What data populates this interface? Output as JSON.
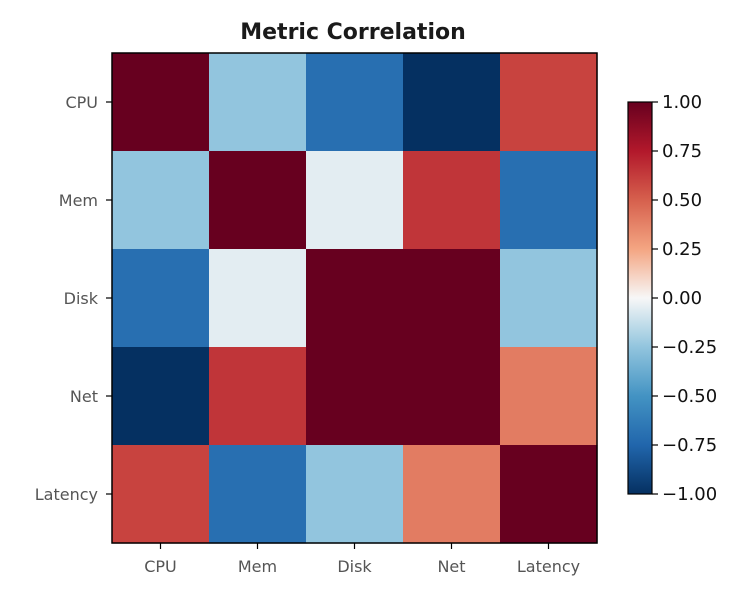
{
  "chart_data": {
    "type": "heatmap",
    "title": "Metric Correlation",
    "xlabel": "",
    "ylabel": "",
    "x_categories": [
      "CPU",
      "Mem",
      "Disk",
      "Net",
      "Latency"
    ],
    "y_categories": [
      "CPU",
      "Mem",
      "Disk",
      "Net",
      "Latency"
    ],
    "values": [
      [
        1.0,
        -0.25,
        -0.7,
        -1.0,
        0.6
      ],
      [
        -0.25,
        1.0,
        -0.05,
        0.65,
        -0.7
      ],
      [
        -0.7,
        -0.05,
        1.0,
        1.0,
        -0.25
      ],
      [
        -1.0,
        0.65,
        1.0,
        1.0,
        0.4
      ],
      [
        0.6,
        -0.7,
        -0.25,
        0.4,
        1.0
      ]
    ],
    "colorscale": "RdBu_r",
    "vmin": -1.0,
    "vmax": 1.0,
    "colorbar": {
      "position": "right",
      "ticks": [
        1.0,
        0.75,
        0.5,
        0.25,
        0.0,
        -0.25,
        -0.5,
        -0.75,
        -1.0
      ],
      "tick_labels": [
        "1.00",
        "0.75",
        "0.50",
        "0.25",
        "0.00",
        "−0.25",
        "−0.50",
        "−0.75",
        "−1.00"
      ]
    },
    "grid": false
  }
}
